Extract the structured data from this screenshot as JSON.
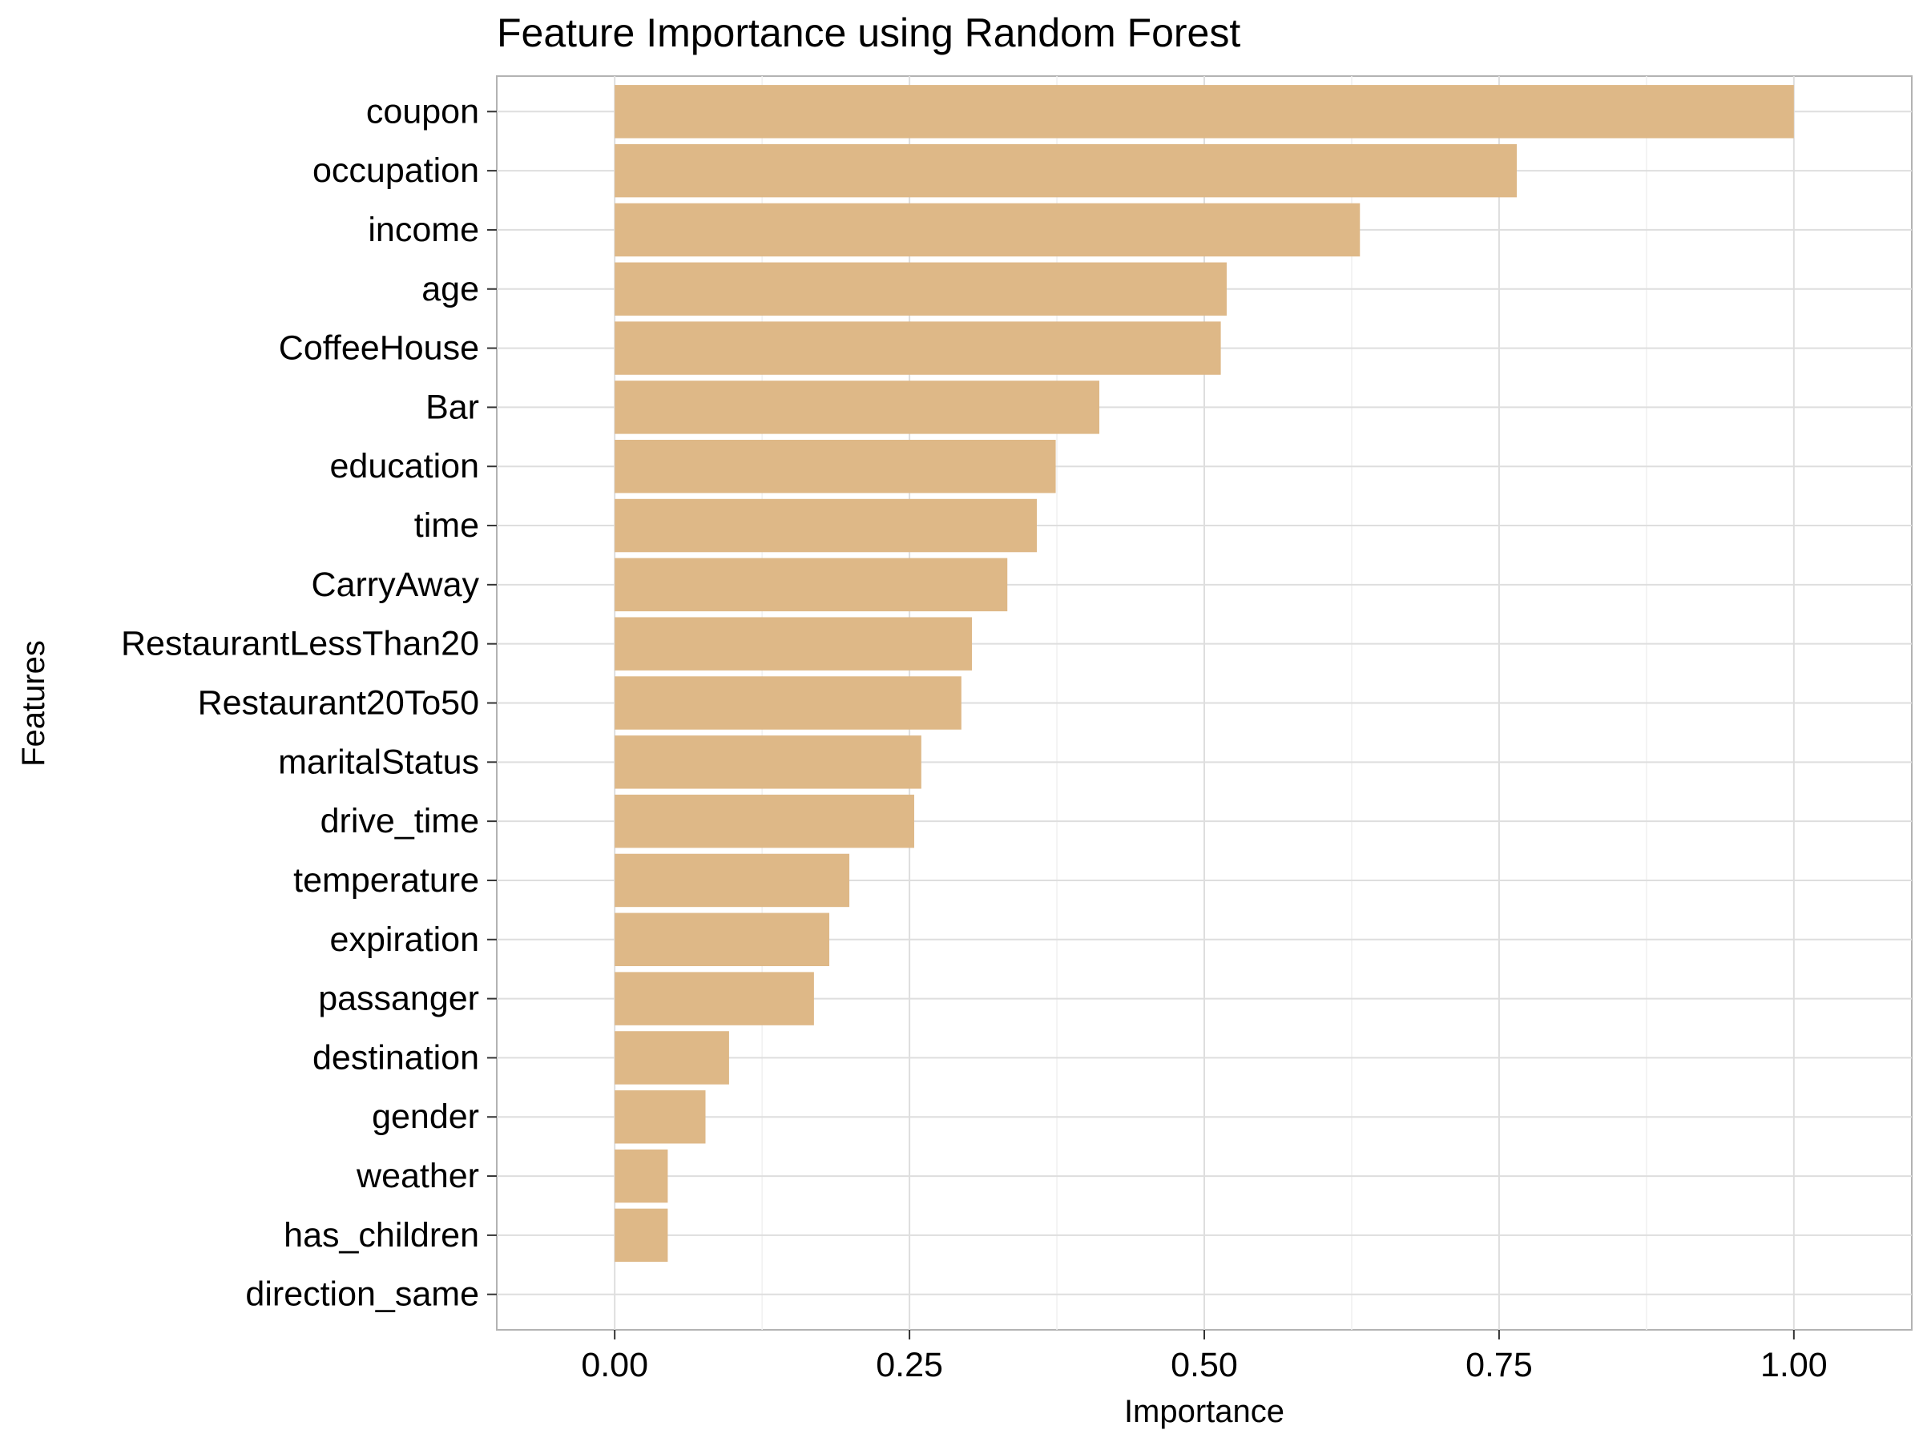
{
  "chart_data": {
    "type": "bar",
    "orientation": "horizontal",
    "title": "Feature Importance using Random Forest",
    "xlabel": "Importance",
    "ylabel": "Features",
    "xlim": [
      -0.1,
      1.1
    ],
    "xticks": [
      "0.00",
      "0.25",
      "0.50",
      "0.75",
      "1.00"
    ],
    "xtick_values": [
      0,
      0.25,
      0.5,
      0.75,
      1.0
    ],
    "grid": true,
    "legend": "none",
    "bar_color": "#DEB887",
    "categories": [
      "coupon",
      "occupation",
      "income",
      "age",
      "CoffeeHouse",
      "Bar",
      "education",
      "time",
      "CarryAway",
      "RestaurantLessThan20",
      "Restaurant20To50",
      "maritalStatus",
      "drive_time",
      "temperature",
      "expiration",
      "passanger",
      "destination",
      "gender",
      "weather",
      "has_children",
      "direction_same"
    ],
    "values": [
      1.0,
      0.765,
      0.632,
      0.519,
      0.514,
      0.411,
      0.374,
      0.358,
      0.333,
      0.303,
      0.294,
      0.26,
      0.254,
      0.199,
      0.182,
      0.169,
      0.097,
      0.077,
      0.045,
      0.045,
      0.0
    ]
  }
}
